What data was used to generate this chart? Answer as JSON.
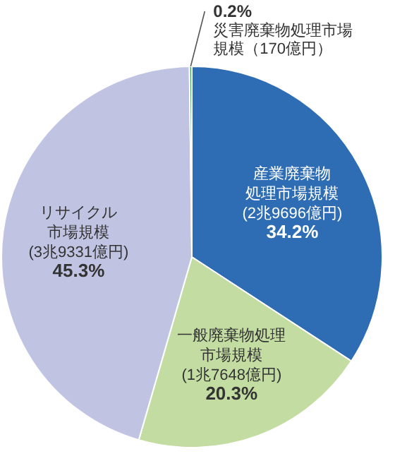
{
  "chart_data": {
    "type": "pie",
    "categories": [
      "産業廃棄物処理市場規模(2兆9696億円)",
      "一般廃棄物処理市場規模(1兆7648億円)",
      "リサイクル市場規模(3兆9331億円)",
      "災害廃棄物処理市場規模（170億円）"
    ],
    "values": [
      34.2,
      20.3,
      45.3,
      0.2
    ],
    "colors": [
      "#2e6db4",
      "#c3dca2",
      "#c0c4e2",
      "#3aa65a"
    ],
    "value_labels": [
      "34.2%",
      "20.3%",
      "45.3%",
      "0.2%"
    ]
  }
}
